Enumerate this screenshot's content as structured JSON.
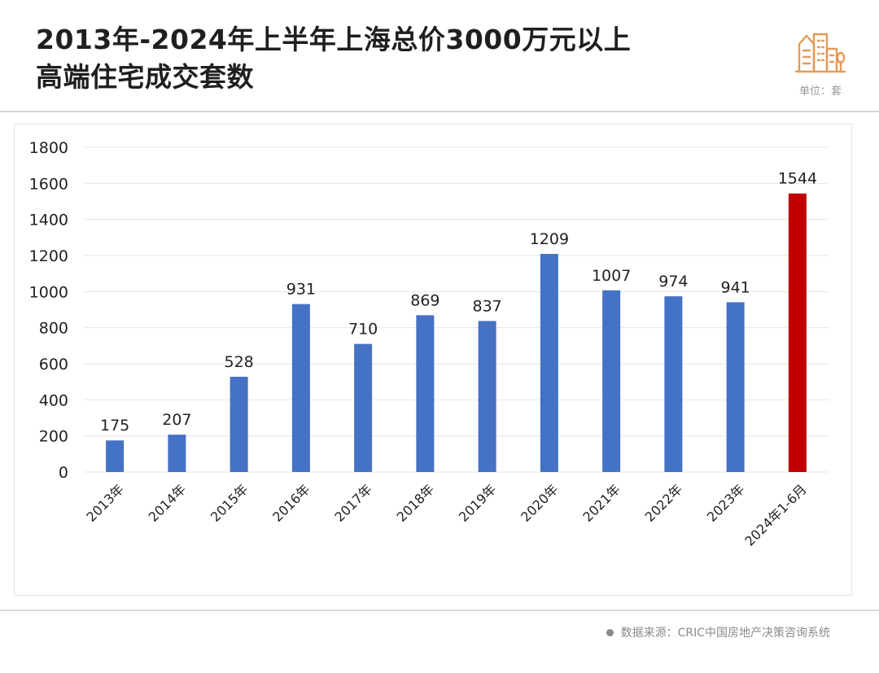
{
  "header": {
    "title_line1": "2013年-2024年上半年上海总价3000万元以上",
    "title_line2": "高端住宅成交套数",
    "unit": "单位：套",
    "logo_icon": "buildings-icon"
  },
  "footer": {
    "source": "数据来源：CRIC中国房地产决策咨询系统"
  },
  "chart_data": {
    "type": "bar",
    "title": "2013年-2024年上半年上海总价3000万元以上高端住宅成交套数",
    "xlabel": "",
    "ylabel": "",
    "categories": [
      "2013年",
      "2014年",
      "2015年",
      "2016年",
      "2017年",
      "2018年",
      "2019年",
      "2020年",
      "2021年",
      "2022年",
      "2023年",
      "2024年1-6月"
    ],
    "values": [
      175,
      207,
      528,
      931,
      710,
      869,
      837,
      1209,
      1007,
      974,
      941,
      1544
    ],
    "ylim": [
      0,
      1800
    ],
    "yticks": [
      0,
      200,
      400,
      600,
      800,
      1000,
      1200,
      1400,
      1600,
      1800
    ],
    "grid": true,
    "legend": "none",
    "colors": {
      "bar": "#4472c4",
      "highlight": "#c00000",
      "grid": "#e6e6e6"
    },
    "highlight_index": 11
  }
}
